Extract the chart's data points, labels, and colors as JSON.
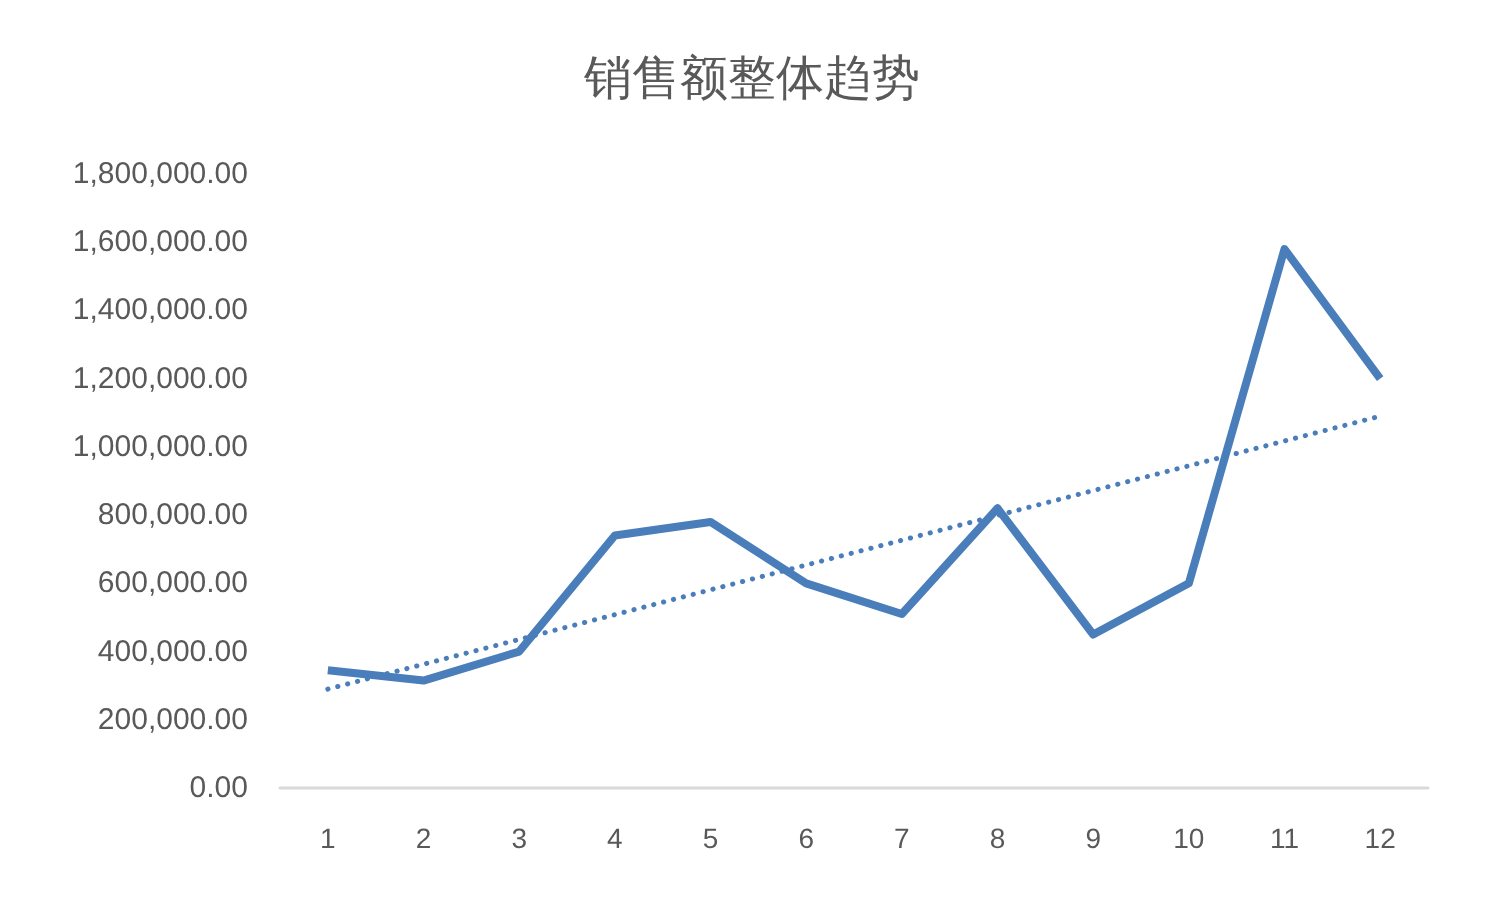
{
  "chart_data": {
    "type": "line",
    "title": "销售额整体趋势",
    "x": [
      1,
      2,
      3,
      4,
      5,
      6,
      7,
      8,
      9,
      10,
      11,
      12
    ],
    "series": [
      {
        "color": "#4a7ebb",
        "values": [
          345000,
          315000,
          400000,
          740000,
          780000,
          600000,
          510000,
          820000,
          450000,
          600000,
          1580000,
          1200000
        ]
      },
      {
        "type": "line",
        "color": "#4a7ebb",
        "line_style": "dotted",
        "x": [
          1,
          12
        ],
        "values": [
          290000,
          1090000
        ]
      }
    ],
    "xlim": [
      0.5,
      12.5
    ],
    "xticks": [
      1,
      2,
      3,
      4,
      5,
      6,
      7,
      8,
      9,
      10,
      11,
      12
    ],
    "ylim": [
      0,
      1800000
    ],
    "yticks": [
      {
        "value": 0,
        "label": "0.00"
      },
      {
        "value": 200000,
        "label": "200,000.00"
      },
      {
        "value": 400000,
        "label": "400,000.00"
      },
      {
        "value": 600000,
        "label": "600,000.00"
      },
      {
        "value": 800000,
        "label": "800,000.00"
      },
      {
        "value": 1000000,
        "label": "1,000,000.00"
      },
      {
        "value": 1200000,
        "label": "1,200,000.00"
      },
      {
        "value": 1400000,
        "label": "1,400,000.00"
      },
      {
        "value": 1600000,
        "label": "1,600,000.00"
      },
      {
        "value": 1800000,
        "label": "1,800,000.00"
      }
    ],
    "grid": false,
    "marker": "none"
  }
}
